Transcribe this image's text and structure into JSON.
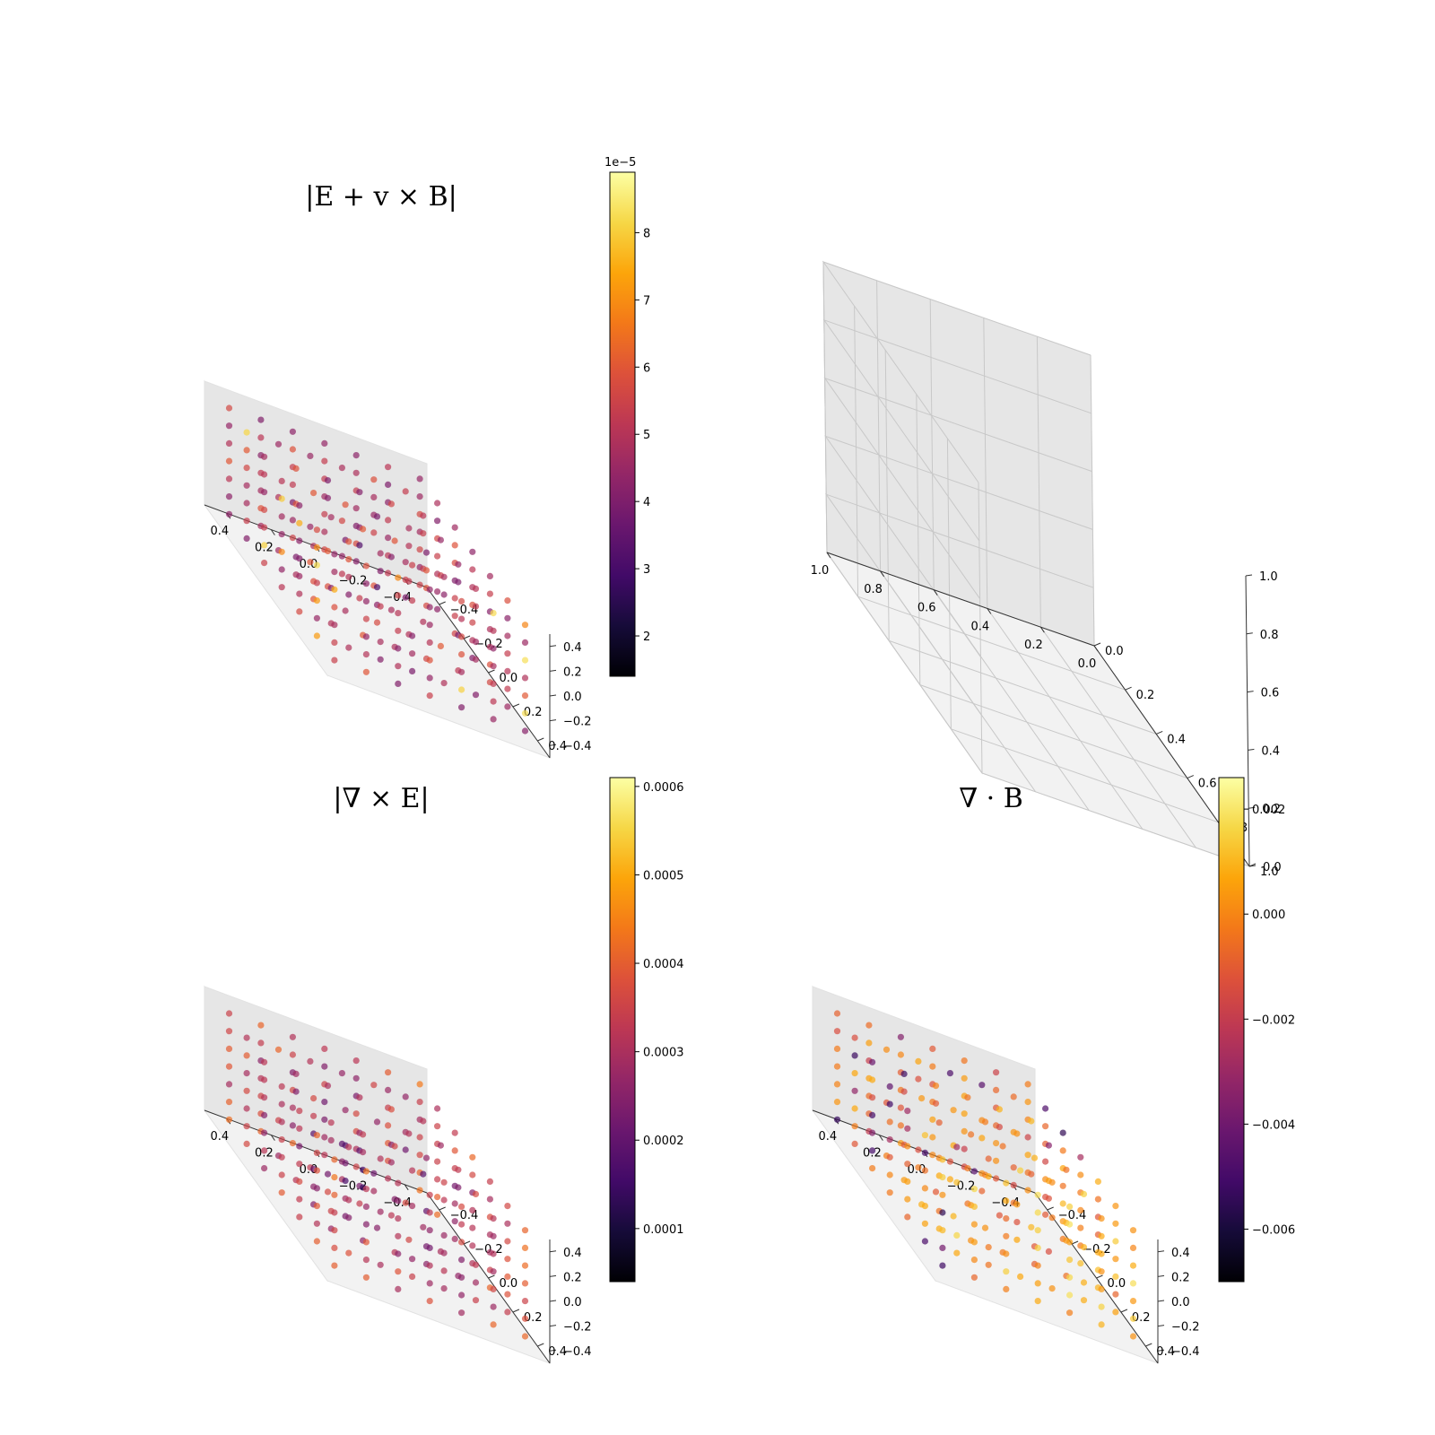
{
  "chart_data": [
    {
      "id": "panel-1",
      "type": "scatter3d",
      "title": "|E + v × B|",
      "grid": 7,
      "xlim": [
        -0.5,
        0.5
      ],
      "ylim": [
        -0.5,
        0.5
      ],
      "zlim": [
        -0.5,
        0.5
      ],
      "x_ticks": [
        "−0.4",
        "−0.2",
        "0.0",
        "0.2",
        "0.4"
      ],
      "y_ticks": [
        "−0.4",
        "−0.2",
        "0.0",
        "0.2",
        "0.4"
      ],
      "z_ticks": [
        "−0.4",
        "−0.2",
        "0.0",
        "0.2",
        "0.4"
      ],
      "colorbar": {
        "min": 1.4,
        "max": 8.9,
        "ticks": [
          "2",
          "3",
          "4",
          "5",
          "6",
          "7",
          "8"
        ],
        "tick_values": [
          2,
          3,
          4,
          5,
          6,
          7,
          8
        ],
        "offset_label": "1e−5"
      },
      "colormap": "inferno",
      "value_pattern": "mostly 4.5–6.5 with a few dark (≈2) points near the center and bright (≈7.5–8.5) points near the front corners"
    },
    {
      "id": "panel-2",
      "type": "empty3d",
      "xlim": [
        0,
        1
      ],
      "ylim": [
        0,
        1
      ],
      "zlim": [
        0,
        1
      ],
      "x_ticks": [
        "0.0",
        "0.2",
        "0.4",
        "0.6",
        "0.8",
        "1.0"
      ],
      "y_ticks": [
        "0.0",
        "0.2",
        "0.4",
        "0.6",
        "0.8",
        "1.0"
      ],
      "z_ticks": [
        "0.0",
        "0.2",
        "0.4",
        "0.6",
        "0.8",
        "1.0"
      ],
      "grid": true
    },
    {
      "id": "panel-3",
      "type": "scatter3d",
      "title": "|∇ × E|",
      "grid": 7,
      "xlim": [
        -0.5,
        0.5
      ],
      "ylim": [
        -0.5,
        0.5
      ],
      "zlim": [
        -0.5,
        0.5
      ],
      "x_ticks": [
        "−0.4",
        "−0.2",
        "0.0",
        "0.2",
        "0.4"
      ],
      "y_ticks": [
        "−0.4",
        "−0.2",
        "0.0",
        "0.2",
        "0.4"
      ],
      "z_ticks": [
        "−0.4",
        "−0.2",
        "0.0",
        "0.2",
        "0.4"
      ],
      "colorbar": {
        "min": 4e-05,
        "max": 0.00061,
        "ticks": [
          "0.0001",
          "0.0002",
          "0.0003",
          "0.0004",
          "0.0005",
          "0.0006"
        ],
        "tick_values": [
          0.0001,
          0.0002,
          0.0003,
          0.0004,
          0.0005,
          0.0006
        ]
      },
      "colormap": "inferno",
      "value_pattern": "dark (≈0.0001) in the interior, pink/purple (0.0002–0.0003) mid, a few bright (≈0.0005–0.0006) corner points"
    },
    {
      "id": "panel-4",
      "type": "scatter3d",
      "title": "∇ · B",
      "grid": 7,
      "xlim": [
        -0.5,
        0.5
      ],
      "ylim": [
        -0.5,
        0.5
      ],
      "zlim": [
        -0.5,
        0.5
      ],
      "x_ticks": [
        "−0.4",
        "−0.2",
        "0.0",
        "0.2",
        "0.4"
      ],
      "y_ticks": [
        "−0.4",
        "−0.2",
        "0.0",
        "0.2",
        "0.4"
      ],
      "z_ticks": [
        "−0.4",
        "−0.2",
        "0.0",
        "0.2",
        "0.4"
      ],
      "colorbar": {
        "min": -0.007,
        "max": 0.0026,
        "ticks": [
          "−0.006",
          "−0.004",
          "−0.002",
          "0.000",
          "0.002"
        ],
        "tick_values": [
          -0.006,
          -0.004,
          -0.002,
          0.0,
          0.002
        ]
      },
      "colormap": "inferno",
      "value_pattern": "mostly orange/yellow (≈0 to 0.002), a few purple/dark (≈−0.004 to −0.006) points on the faces"
    }
  ]
}
